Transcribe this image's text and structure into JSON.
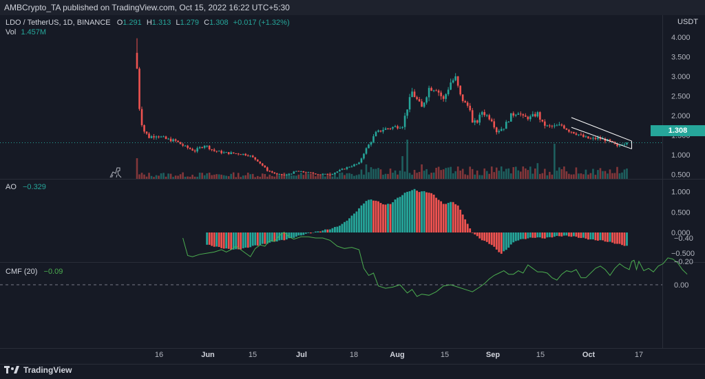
{
  "header": {
    "published": "AMBCrypto_TA published on TradingView.com, Oct 15, 2022 16:22 UTC+5:30",
    "currency": "USDT"
  },
  "legend": {
    "symbol": "LDO / TetherUS, 1D, BINANCE",
    "open_label": "O",
    "open": "1.291",
    "high_label": "H",
    "high": "1.313",
    "low_label": "L",
    "low": "1.279",
    "close_label": "C",
    "close": "1.308",
    "change": "+0.017 (+1.32%)",
    "vol_label": "Vol",
    "vol": "1.457M",
    "ao_label": "AO",
    "ao": "−0.329",
    "cmf_label": "CMF (20)",
    "cmf": "−0.09"
  },
  "price_badge": "1.308",
  "footer": {
    "brand": "TradingView"
  },
  "colors": {
    "up": "#26a69a",
    "down": "#ef5350",
    "cmf": "#4caf50",
    "bg": "#161a25"
  },
  "chart_data": [
    {
      "type": "candlestick",
      "title": "LDO / TetherUS, 1D, BINANCE",
      "y_ticks": [
        "4.000",
        "3.500",
        "3.000",
        "2.500",
        "2.000",
        "1.500",
        "1.000",
        "0.500"
      ],
      "ylim": [
        0,
        4.2
      ],
      "x_ticks": [
        "16",
        "Jun",
        "15",
        "Jul",
        "18",
        "Aug",
        "15",
        "Sep",
        "15",
        "Oct",
        "17"
      ],
      "x_ticks_bold": [
        "Jun",
        "Jul",
        "Aug",
        "Sep",
        "Oct"
      ],
      "anchors_close": [
        [
          0,
          3.2
        ],
        [
          1,
          2.2
        ],
        [
          2,
          1.8
        ],
        [
          3,
          1.6
        ],
        [
          5,
          1.45
        ],
        [
          8,
          1.5
        ],
        [
          12,
          1.4
        ],
        [
          16,
          1.35
        ],
        [
          20,
          1.2
        ],
        [
          24,
          1.1
        ],
        [
          28,
          1.25
        ],
        [
          32,
          1.1
        ],
        [
          36,
          1.05
        ],
        [
          42,
          1.03
        ],
        [
          46,
          1.0
        ],
        [
          50,
          0.85
        ],
        [
          54,
          0.6
        ],
        [
          58,
          0.5
        ],
        [
          62,
          0.48
        ],
        [
          66,
          0.58
        ],
        [
          70,
          0.55
        ],
        [
          76,
          0.5
        ],
        [
          80,
          0.5
        ],
        [
          84,
          0.6
        ],
        [
          88,
          0.7
        ],
        [
          92,
          0.78
        ],
        [
          94,
          1.05
        ],
        [
          96,
          1.25
        ],
        [
          99,
          1.55
        ],
        [
          102,
          1.65
        ],
        [
          106,
          1.7
        ],
        [
          110,
          1.75
        ],
        [
          112,
          2.2
        ],
        [
          114,
          2.6
        ],
        [
          116,
          2.4
        ],
        [
          118,
          2.2
        ],
        [
          121,
          2.7
        ],
        [
          124,
          2.7
        ],
        [
          127,
          2.4
        ],
        [
          130,
          2.85
        ],
        [
          132,
          2.95
        ],
        [
          134,
          2.5
        ],
        [
          136,
          2.3
        ],
        [
          138,
          2.2
        ],
        [
          139,
          1.8
        ],
        [
          141,
          1.85
        ],
        [
          143,
          2.1
        ],
        [
          145,
          2.0
        ],
        [
          147,
          1.9
        ],
        [
          149,
          1.6
        ],
        [
          152,
          1.7
        ],
        [
          155,
          2.0
        ],
        [
          158,
          2.1
        ],
        [
          160,
          1.95
        ],
        [
          163,
          1.95
        ],
        [
          166,
          2.05
        ],
        [
          168,
          1.8
        ],
        [
          170,
          1.72
        ],
        [
          173,
          1.72
        ],
        [
          176,
          1.75
        ],
        [
          179,
          1.62
        ],
        [
          182,
          1.55
        ],
        [
          185,
          1.45
        ],
        [
          188,
          1.4
        ],
        [
          191,
          1.42
        ],
        [
          194,
          1.38
        ],
        [
          197,
          1.3
        ],
        [
          199,
          1.2
        ],
        [
          201,
          1.28
        ],
        [
          203,
          1.308
        ]
      ],
      "volume_bars": 204,
      "volume_peak_annotations": {
        "notable": [
          [
            0,
            0.5
          ],
          [
            95,
            0.35
          ],
          [
            112,
            0.95
          ],
          [
            173,
            0.85
          ],
          [
            110,
            0.55
          ],
          [
            118,
            0.35
          ],
          [
            151,
            0.3
          ],
          [
            160,
            0.3
          ],
          [
            166,
            0.38
          ]
        ]
      },
      "channel": {
        "from_day": 180,
        "to_day": 205,
        "upper": [
          1.95,
          1.35
        ],
        "lower": [
          1.7,
          1.15
        ]
      },
      "last_price_line": 1.308
    },
    {
      "type": "bar",
      "title": "AO",
      "y_ticks": [
        "1.000",
        "0.500",
        "0.000",
        "−0.500"
      ],
      "ylim": [
        -0.6,
        1.15
      ],
      "anchors": [
        [
          0,
          -0.3
        ],
        [
          4,
          -0.35
        ],
        [
          8,
          -0.4
        ],
        [
          12,
          -0.42
        ],
        [
          16,
          -0.38
        ],
        [
          20,
          -0.32
        ],
        [
          24,
          -0.28
        ],
        [
          28,
          -0.22
        ],
        [
          32,
          -0.18
        ],
        [
          36,
          -0.12
        ],
        [
          40,
          -0.05
        ],
        [
          44,
          0.0
        ],
        [
          48,
          0.05
        ],
        [
          52,
          0.1
        ],
        [
          56,
          0.2
        ],
        [
          60,
          0.4
        ],
        [
          64,
          0.65
        ],
        [
          66,
          0.78
        ],
        [
          68,
          0.8
        ],
        [
          70,
          0.78
        ],
        [
          72,
          0.72
        ],
        [
          74,
          0.68
        ],
        [
          76,
          0.7
        ],
        [
          78,
          0.8
        ],
        [
          80,
          0.88
        ],
        [
          82,
          0.96
        ],
        [
          84,
          1.02
        ],
        [
          86,
          1.05
        ],
        [
          88,
          1.0
        ],
        [
          90,
          1.0
        ],
        [
          92,
          0.98
        ],
        [
          94,
          0.92
        ],
        [
          96,
          0.8
        ],
        [
          98,
          0.7
        ],
        [
          100,
          0.72
        ],
        [
          102,
          0.75
        ],
        [
          104,
          0.65
        ],
        [
          106,
          0.45
        ],
        [
          108,
          0.2
        ],
        [
          110,
          0.0
        ],
        [
          112,
          -0.1
        ],
        [
          114,
          -0.18
        ],
        [
          116,
          -0.24
        ],
        [
          118,
          -0.3
        ],
        [
          120,
          -0.42
        ],
        [
          122,
          -0.52
        ],
        [
          124,
          -0.42
        ],
        [
          126,
          -0.3
        ],
        [
          128,
          -0.2
        ],
        [
          132,
          -0.15
        ],
        [
          136,
          -0.12
        ],
        [
          140,
          -0.14
        ],
        [
          144,
          -0.1
        ],
        [
          148,
          -0.08
        ],
        [
          152,
          -0.1
        ],
        [
          156,
          -0.14
        ],
        [
          160,
          -0.18
        ],
        [
          164,
          -0.2
        ],
        [
          168,
          -0.25
        ],
        [
          171,
          -0.29
        ],
        [
          174,
          -0.33
        ]
      ],
      "start_day": 29
    },
    {
      "type": "line",
      "title": "CMF (20)",
      "y_ticks": [
        "0.00",
        "−0.20",
        "−0.40"
      ],
      "ylim": [
        -0.45,
        0.13
      ],
      "zero_dashed": true,
      "points": [
        [
          19,
          -0.4
        ],
        [
          21,
          -0.25
        ],
        [
          23,
          -0.24
        ],
        [
          26,
          -0.26
        ],
        [
          29,
          -0.27
        ],
        [
          32,
          -0.28
        ],
        [
          35,
          -0.3
        ],
        [
          37,
          -0.28
        ],
        [
          39,
          -0.3
        ],
        [
          41,
          -0.33
        ],
        [
          43,
          -0.3
        ],
        [
          45,
          -0.27
        ],
        [
          47,
          -0.24
        ],
        [
          49,
          -0.31
        ],
        [
          51,
          -0.34
        ],
        [
          53,
          -0.33
        ],
        [
          55,
          -0.38
        ],
        [
          57,
          -0.37
        ],
        [
          59,
          -0.42
        ],
        [
          61,
          -0.45
        ],
        [
          63,
          -0.41
        ],
        [
          65,
          -0.39
        ],
        [
          68,
          -0.41
        ],
        [
          71,
          -0.41
        ],
        [
          74,
          -0.4
        ],
        [
          77,
          -0.4
        ],
        [
          80,
          -0.38
        ],
        [
          83,
          -0.33
        ],
        [
          86,
          -0.31
        ],
        [
          89,
          -0.32
        ],
        [
          92,
          -0.3
        ],
        [
          94,
          -0.14
        ],
        [
          96,
          -0.08
        ],
        [
          98,
          -0.1
        ],
        [
          100,
          0.01
        ],
        [
          103,
          0.03
        ],
        [
          106,
          0.02
        ],
        [
          109,
          0.0
        ],
        [
          112,
          0.07
        ],
        [
          114,
          0.04
        ],
        [
          116,
          0.1
        ],
        [
          118,
          0.08
        ],
        [
          121,
          0.09
        ],
        [
          124,
          0.06
        ],
        [
          127,
          0.01
        ],
        [
          130,
          0.0
        ],
        [
          133,
          0.02
        ],
        [
          136,
          0.04
        ],
        [
          139,
          0.06
        ],
        [
          142,
          0.02
        ],
        [
          144,
          -0.01
        ],
        [
          146,
          -0.05
        ],
        [
          148,
          -0.08
        ],
        [
          150,
          -0.1
        ],
        [
          152,
          -0.12
        ],
        [
          154,
          -0.09
        ],
        [
          156,
          -0.09
        ],
        [
          158,
          -0.12
        ],
        [
          160,
          -0.1
        ],
        [
          162,
          -0.17
        ],
        [
          164,
          -0.14
        ],
        [
          166,
          -0.11
        ],
        [
          168,
          -0.11
        ],
        [
          170,
          -0.1
        ],
        [
          172,
          -0.06
        ],
        [
          174,
          -0.04
        ],
        [
          176,
          -0.09
        ],
        [
          178,
          -0.12
        ],
        [
          180,
          -0.11
        ],
        [
          182,
          -0.13
        ],
        [
          184,
          -0.06
        ],
        [
          186,
          -0.06
        ],
        [
          188,
          -0.1
        ],
        [
          190,
          -0.14
        ],
        [
          192,
          -0.16
        ],
        [
          194,
          -0.13
        ],
        [
          196,
          -0.08
        ],
        [
          198,
          -0.14
        ],
        [
          200,
          -0.18
        ],
        [
          202,
          -0.15
        ],
        [
          204,
          -0.13
        ],
        [
          205,
          -0.2
        ],
        [
          206,
          -0.21
        ],
        [
          207,
          -0.13
        ],
        [
          208,
          -0.2
        ],
        [
          210,
          -0.12
        ],
        [
          212,
          -0.14
        ],
        [
          214,
          -0.11
        ],
        [
          216,
          -0.16
        ],
        [
          218,
          -0.18
        ],
        [
          220,
          -0.23
        ],
        [
          222,
          -0.22
        ],
        [
          224,
          -0.19
        ],
        [
          226,
          -0.13
        ],
        [
          228,
          -0.09
        ]
      ]
    }
  ]
}
